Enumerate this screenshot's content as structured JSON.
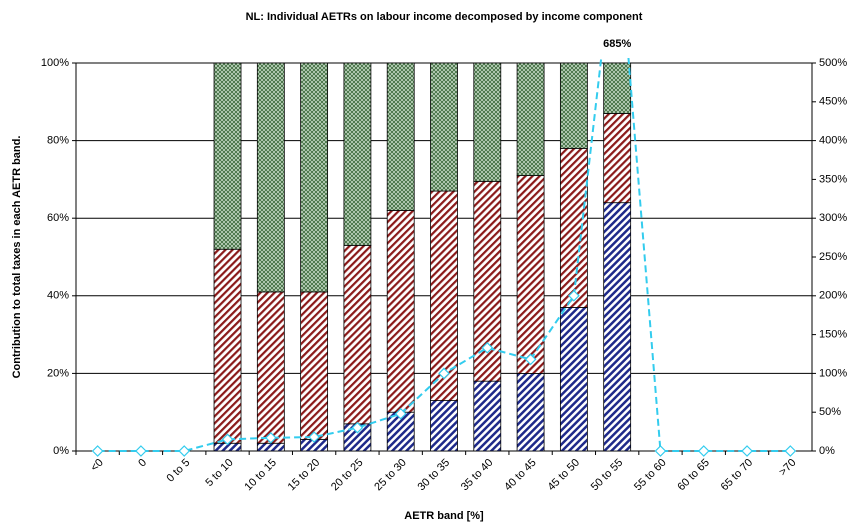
{
  "chart_data": {
    "type": "stacked_bar_line",
    "title": "NL: Individual AETRs on labour income decomposed by income component",
    "x_label": "AETR band [%]",
    "y_label": "Contribution to total taxes in each AETR band.",
    "categories": [
      "<0",
      "0",
      "0 to 5",
      "5 to 10",
      "10 to 15",
      "15 to 20",
      "20 to 25",
      "25 to 30",
      "30 to 35",
      "35 to 40",
      "40 to 45",
      "45 to 50",
      "50 to 55",
      "55 to 60",
      "60 to 65",
      "65 to 70",
      ">70"
    ],
    "series": [
      {
        "color": "#1f2a8a",
        "values": [
          null,
          null,
          null,
          2,
          2,
          3,
          7,
          10,
          13,
          18,
          20,
          37,
          64,
          null,
          null,
          null,
          null
        ]
      },
      {
        "color": "#8b1a1a",
        "values": [
          null,
          null,
          null,
          50,
          39,
          38,
          46,
          52,
          54,
          51.5,
          51,
          41,
          23,
          null,
          null,
          null,
          null
        ]
      },
      {
        "color": "#3e6b3e",
        "values": [
          null,
          null,
          null,
          48,
          59,
          59,
          47,
          38,
          33,
          30.5,
          29,
          22,
          13,
          null,
          null,
          null,
          null
        ]
      },
      {
        "color": "#33ccee",
        "axis": "y2",
        "values": [
          0,
          0,
          0,
          15,
          17,
          18,
          30,
          48,
          100,
          133,
          118,
          200,
          685,
          0,
          0,
          0,
          0
        ],
        "value_labels": [
          null,
          null,
          null,
          null,
          null,
          null,
          null,
          null,
          null,
          null,
          null,
          null,
          "685%",
          null,
          null,
          null,
          null
        ]
      }
    ],
    "ylim": [
      0,
      100
    ],
    "yticks": [
      {
        "value": 0,
        "label": "0%"
      },
      {
        "value": 20,
        "label": "20%"
      },
      {
        "value": 40,
        "label": "40%"
      },
      {
        "value": 60,
        "label": "60%"
      },
      {
        "value": 80,
        "label": "80%"
      },
      {
        "value": 100,
        "label": "100%"
      }
    ],
    "y2lim": [
      0,
      500
    ],
    "y2ticks": [
      {
        "value": 0,
        "label": "0%"
      },
      {
        "value": 50,
        "label": "50%"
      },
      {
        "value": 100,
        "label": "100%"
      },
      {
        "value": 150,
        "label": "150%"
      },
      {
        "value": 200,
        "label": "200%"
      },
      {
        "value": 250,
        "label": "250%"
      },
      {
        "value": 300,
        "label": "300%"
      },
      {
        "value": 350,
        "label": "350%"
      },
      {
        "value": 400,
        "label": "400%"
      },
      {
        "value": 450,
        "label": "450%"
      },
      {
        "value": 500,
        "label": "500%"
      }
    ],
    "grid": true
  }
}
